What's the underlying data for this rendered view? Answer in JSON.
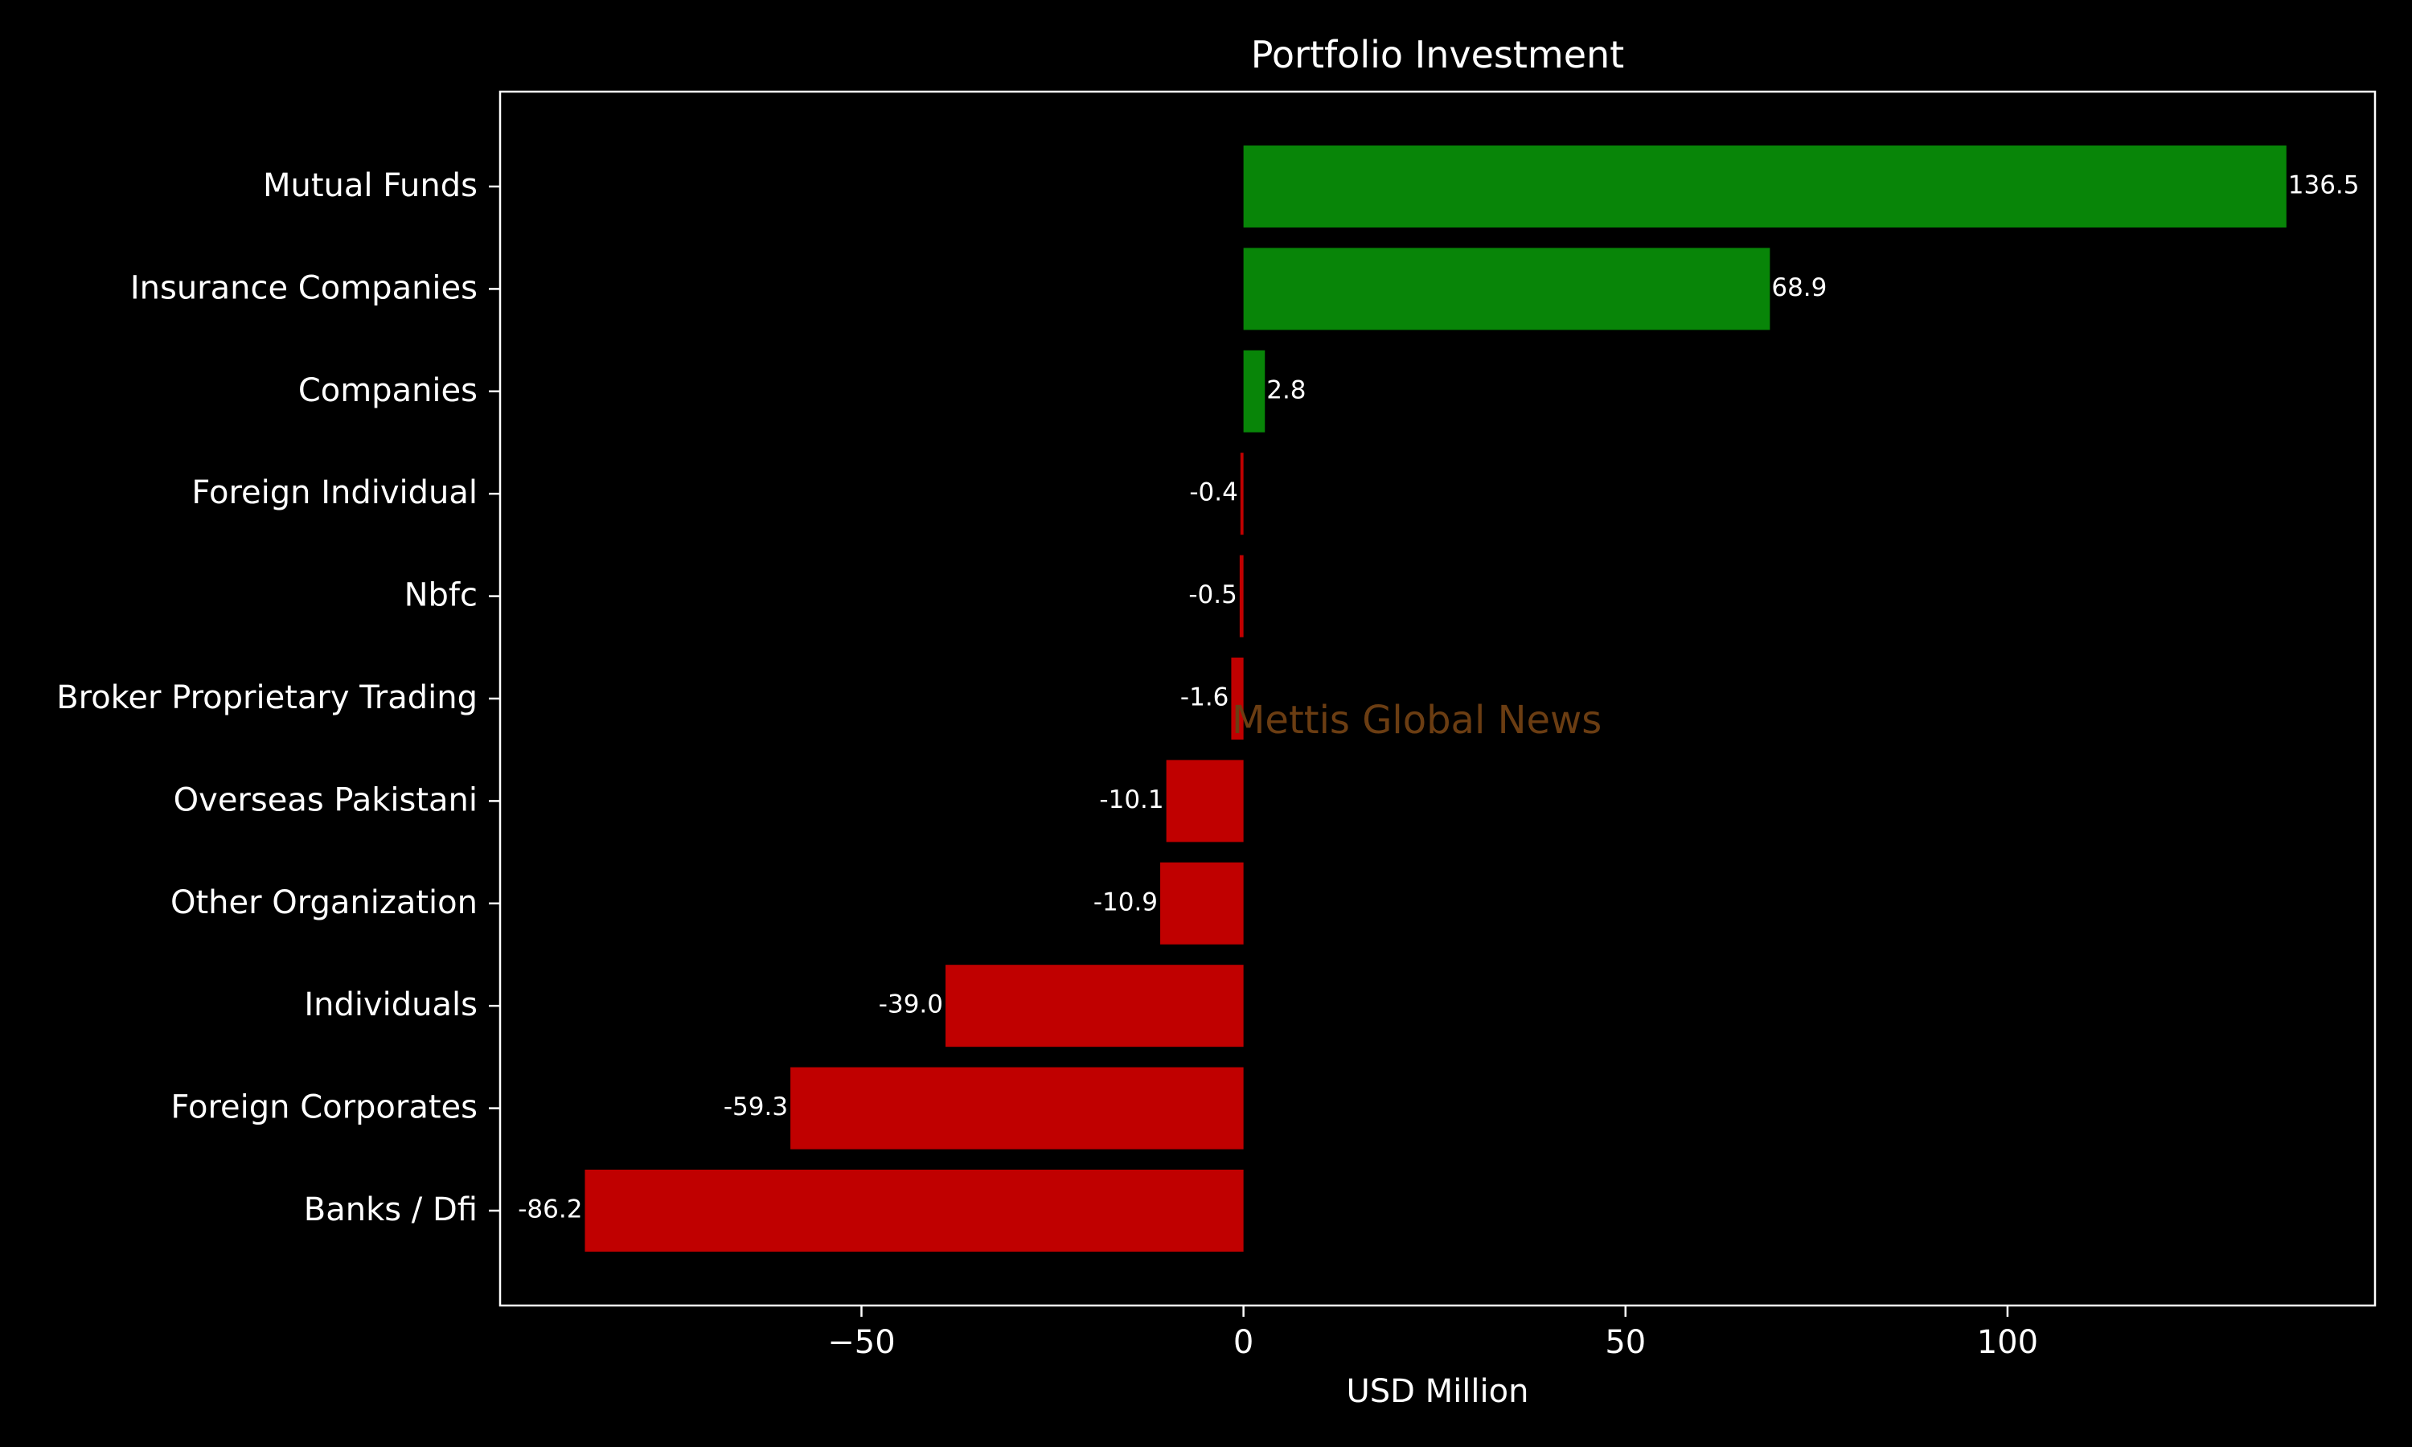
{
  "chart_data": {
    "type": "bar",
    "orientation": "horizontal",
    "title": "Portfolio Investment",
    "xlabel": "USD Million",
    "ylabel": "",
    "categories": [
      "Mutual Funds",
      "Insurance Companies",
      "Companies",
      "Foreign Individual",
      "Nbfc",
      "Broker Proprietary Trading",
      "Overseas Pakistani",
      "Other Organization",
      "Individuals",
      "Foreign Corporates ",
      "Banks / Dfi"
    ],
    "values": [
      136.5,
      68.9,
      2.8,
      -0.4,
      -0.5,
      -1.6,
      -10.1,
      -10.9,
      -39.0,
      -59.3,
      -86.2
    ],
    "data_labels": [
      "136.5",
      "68.9",
      "2.8",
      "-0.4",
      "-0.5",
      "-1.6",
      "-10.1",
      "-10.9",
      "-39.0",
      "-59.3",
      "-86.2"
    ],
    "xlim": [
      -97.3,
      148.1
    ],
    "xticks": [
      -50,
      0,
      50,
      100
    ],
    "xtick_labels": [
      "−50",
      "0",
      "50",
      "100"
    ],
    "grid": false,
    "watermark": "Mettis Global News",
    "colors": {
      "background": "#000000",
      "positive": "#088508",
      "negative": "#c00000",
      "axes": "#ffffff",
      "text": "#ffffff",
      "watermark": "#6b3d12"
    }
  }
}
